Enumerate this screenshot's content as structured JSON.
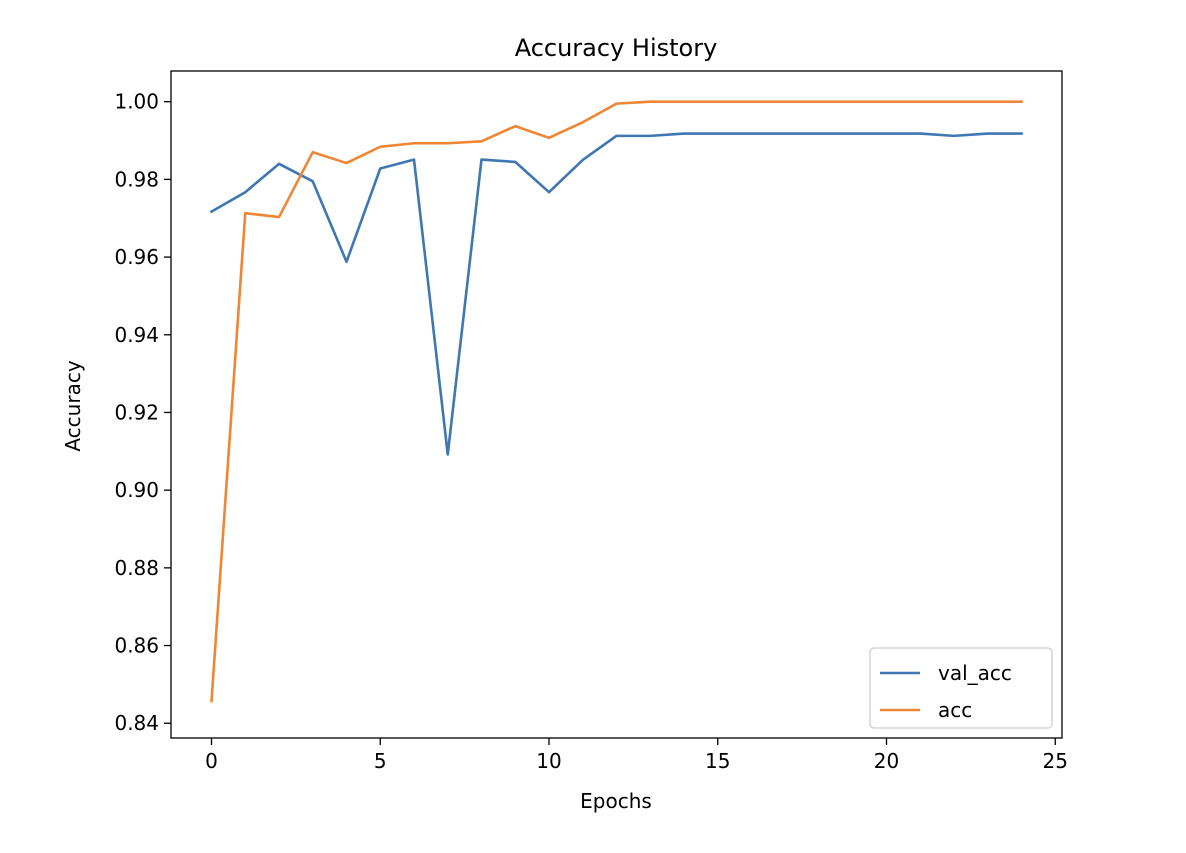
{
  "chart_data": {
    "type": "line",
    "title": "Accuracy History",
    "xlabel": "Epochs",
    "ylabel": "Accuracy",
    "xlim": [
      -1.2,
      25.2
    ],
    "ylim": [
      0.8362,
      1.0079
    ],
    "xticks": [
      0,
      5,
      10,
      15,
      20,
      25
    ],
    "yticks": [
      0.84,
      0.86,
      0.88,
      0.9,
      0.92,
      0.94,
      0.96,
      0.98,
      1.0
    ],
    "xtick_labels": [
      "0",
      "5",
      "10",
      "15",
      "20",
      "25"
    ],
    "ytick_labels": [
      "0.84",
      "0.86",
      "0.88",
      "0.90",
      "0.92",
      "0.94",
      "0.96",
      "0.98",
      "1.00"
    ],
    "grid": false,
    "legend_position": "lower-right",
    "x": [
      0,
      1,
      2,
      3,
      4,
      5,
      6,
      7,
      8,
      9,
      10,
      11,
      12,
      13,
      14,
      15,
      16,
      17,
      18,
      19,
      20,
      21,
      22,
      23,
      24
    ],
    "series": [
      {
        "name": "val_acc",
        "color": "#3f77b3",
        "values": [
          0.9717,
          0.9767,
          0.984,
          0.9795,
          0.9588,
          0.9828,
          0.9851,
          0.9092,
          0.9851,
          0.9845,
          0.9767,
          0.985,
          0.9912,
          0.9912,
          0.9918,
          0.9918,
          0.9918,
          0.9918,
          0.9918,
          0.9918,
          0.9918,
          0.9918,
          0.9912,
          0.9918,
          0.9918
        ]
      },
      {
        "name": "acc",
        "color": "#ef8635",
        "values": [
          0.8457,
          0.9713,
          0.9703,
          0.987,
          0.9842,
          0.9884,
          0.9893,
          0.9893,
          0.9898,
          0.9937,
          0.9907,
          0.9947,
          0.9995,
          1.0,
          1.0,
          1.0,
          1.0,
          1.0,
          1.0,
          1.0,
          1.0,
          1.0,
          1.0,
          1.0,
          1.0
        ]
      }
    ]
  }
}
